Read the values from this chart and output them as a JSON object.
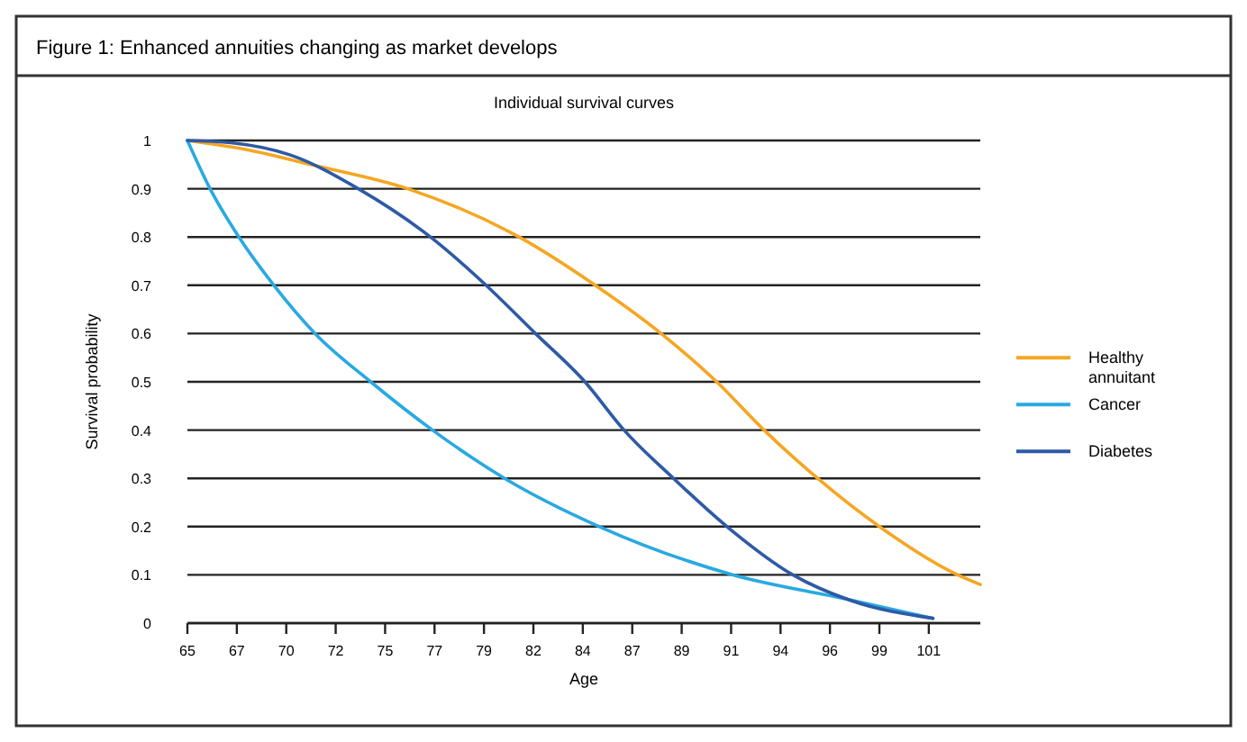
{
  "chart_data": {
    "type": "line",
    "title": "Figure 1: Enhanced annuities changing as market develops",
    "subtitle": "Individual survival curves",
    "xlabel": "Age",
    "ylabel": "Survival probability",
    "xlim": [
      65,
      103.5
    ],
    "xticks": [
      65,
      {
        "value": 67.4,
        "label": "67"
      },
      {
        "value": 69.8,
        "label": "70"
      },
      {
        "value": 72.2,
        "label": "72"
      },
      {
        "value": 74.6,
        "label": "75"
      },
      77,
      {
        "value": 79.4,
        "label": "79"
      },
      {
        "value": 81.8,
        "label": "82"
      },
      {
        "value": 84.2,
        "label": "84"
      },
      {
        "value": 86.6,
        "label": "87"
      },
      89,
      {
        "value": 91.4,
        "label": "91"
      },
      {
        "value": 93.8,
        "label": "94"
      },
      {
        "value": 96.2,
        "label": "96"
      },
      {
        "value": 98.6,
        "label": "99"
      },
      101
    ],
    "ylim": [
      0,
      1
    ],
    "yticks": [
      0,
      0.1,
      0.2,
      0.3,
      0.4,
      0.5,
      0.6,
      0.7,
      0.8,
      0.9,
      1
    ],
    "grid": "y",
    "legend": "right",
    "marker": "none",
    "line_style": "solid",
    "series": [
      {
        "name": "Healthy annuitant",
        "color": "#f5a623",
        "x": [
          65,
          68,
          71,
          75.7,
          81.1,
          84.8,
          88,
          90.7,
          93,
          95.6,
          98.6,
          102.4,
          103.5
        ],
        "values": [
          1,
          0.98,
          0.95,
          0.9,
          0.8,
          0.7,
          0.6,
          0.5,
          0.4,
          0.3,
          0.2,
          0.1,
          0.08
        ]
      },
      {
        "name": "Cancer",
        "color": "#29a9e1",
        "x": [
          65,
          66.1,
          67.5,
          69.2,
          71.2,
          73.9,
          76.9,
          80.4,
          85,
          91.5,
          97,
          101.2
        ],
        "values": [
          1,
          0.9,
          0.8,
          0.7,
          0.6,
          0.5,
          0.4,
          0.3,
          0.2,
          0.1,
          0.05,
          0.01
        ]
      },
      {
        "name": "Diabetes",
        "color": "#2e5aa6",
        "x": [
          65,
          67.2,
          70,
          73.3,
          76.8,
          79.5,
          81.9,
          84.3,
          86.2,
          88.6,
          91.2,
          94.4,
          97.2,
          101.2
        ],
        "values": [
          1,
          0.995,
          0.97,
          0.9,
          0.8,
          0.7,
          0.6,
          0.5,
          0.4,
          0.3,
          0.2,
          0.1,
          0.047,
          0.01
        ]
      }
    ]
  }
}
